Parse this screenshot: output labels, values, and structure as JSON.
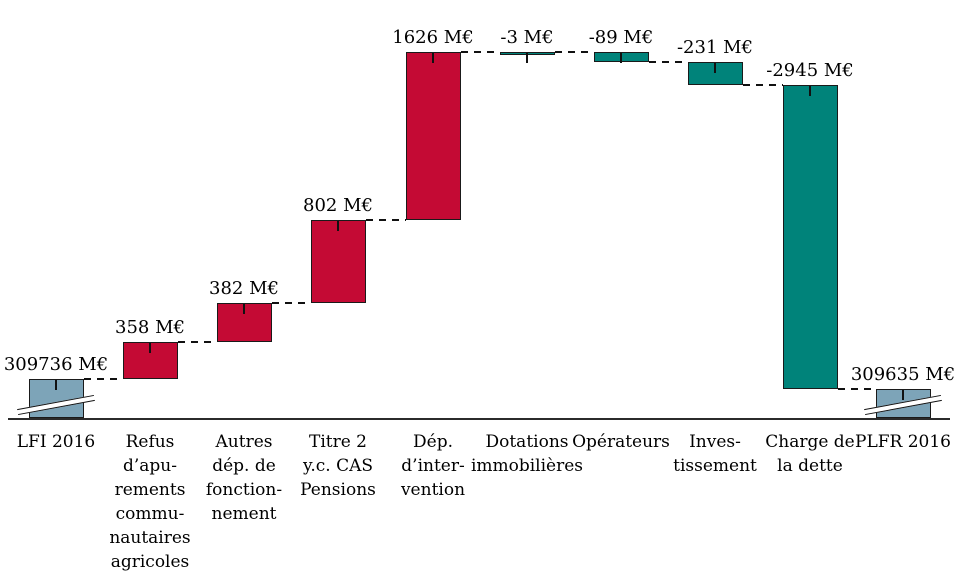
{
  "chart_data": {
    "type": "bar",
    "subtype": "waterfall",
    "title": "",
    "unit": "M€",
    "layout_hints": {
      "grid": false,
      "legend": false,
      "y_axis_visible": false,
      "x_axis_line": true
    },
    "colors": {
      "increase": "#c40a34",
      "decrease": "#00837a",
      "base_total": "#7da4b8",
      "outline": "#1a1a1a",
      "connector": "#111111",
      "axis": "#2b2b2b"
    },
    "steps": [
      {
        "id": "lfi-2016",
        "role": "base",
        "value": 309736,
        "value_label": "309736 M€",
        "name_lines": [
          "LFI 2016"
        ],
        "axis_break": true
      },
      {
        "id": "refus-apurements",
        "role": "increase",
        "value": 358,
        "value_label": "358 M€",
        "name_lines": [
          "Refus",
          "d’apu-",
          "rements",
          "commu-",
          "nautaires",
          "agricoles"
        ],
        "axis_break": false
      },
      {
        "id": "autres-dep-fonctionnement",
        "role": "increase",
        "value": 382,
        "value_label": "382 M€",
        "name_lines": [
          "Autres",
          "dép. de",
          "fonction-",
          "nement"
        ],
        "axis_break": false
      },
      {
        "id": "titre-2-cas-pensions",
        "role": "increase",
        "value": 802,
        "value_label": "802 M€",
        "name_lines": [
          "Titre 2",
          "y.c. CAS",
          "Pensions"
        ],
        "axis_break": false
      },
      {
        "id": "dep-intervention",
        "role": "increase",
        "value": 1626,
        "value_label": "1626 M€",
        "name_lines": [
          "Dép.",
          "d’inter-",
          "vention"
        ],
        "axis_break": false
      },
      {
        "id": "dotations-immobilieres",
        "role": "decrease",
        "value": -3,
        "value_label": "-3 M€",
        "name_lines": [
          "Dotations",
          "immobilières"
        ],
        "axis_break": false
      },
      {
        "id": "operateurs",
        "role": "decrease",
        "value": -89,
        "value_label": "-89 M€",
        "name_lines": [
          "Opérateurs"
        ],
        "axis_break": false
      },
      {
        "id": "investissement",
        "role": "decrease",
        "value": -231,
        "value_label": "-231 M€",
        "name_lines": [
          "Inves-",
          "tissement"
        ],
        "axis_break": false
      },
      {
        "id": "charge-de-la-dette",
        "role": "decrease",
        "value": -2945,
        "value_label": "-2945 M€",
        "name_lines": [
          "Charge de",
          "la dette"
        ],
        "axis_break": false
      },
      {
        "id": "plfr-2016",
        "role": "total",
        "value": 309635,
        "value_label": "309635 M€",
        "name_lines": [
          "PLFR 2016"
        ],
        "axis_break": true
      }
    ]
  }
}
